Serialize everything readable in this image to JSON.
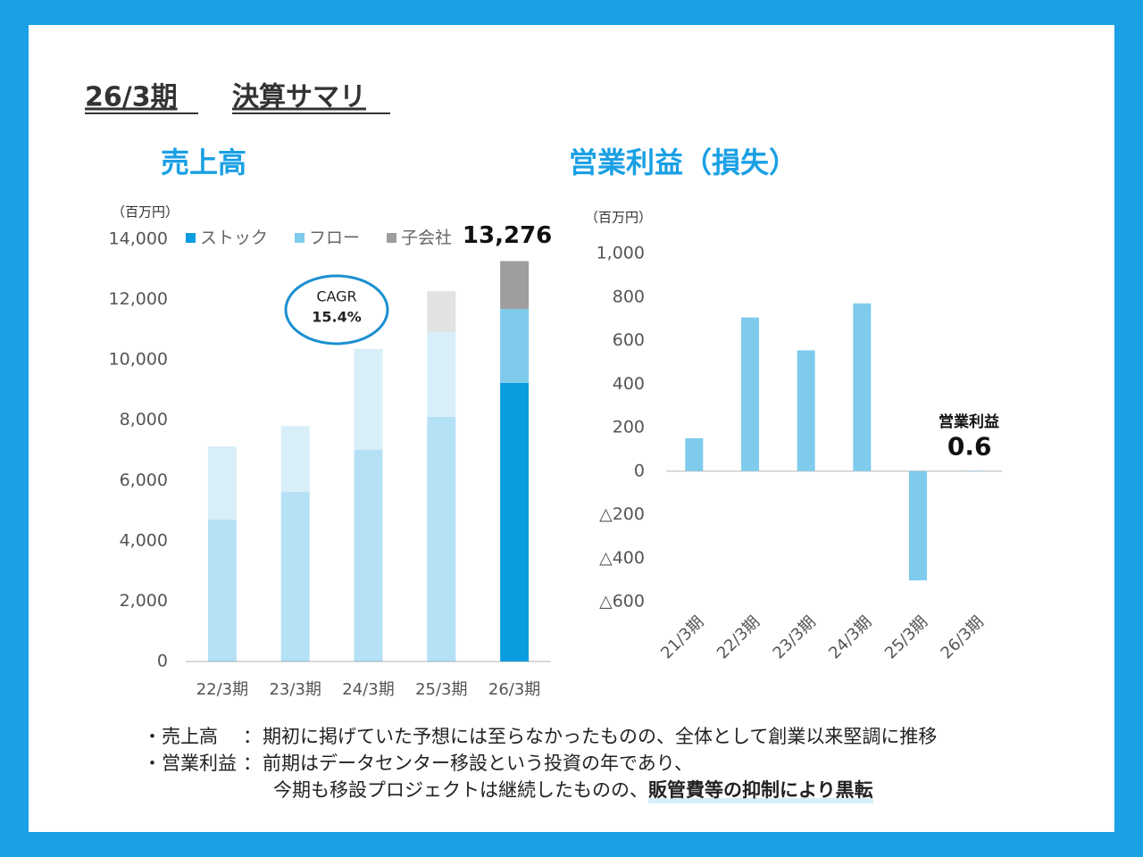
{
  "slide": {
    "title_period": "26/3期",
    "title_text": "決算サマリ"
  },
  "chart_data": [
    {
      "type": "bar",
      "stacked": true,
      "title": "売上高",
      "y_unit": "（百万円）",
      "categories": [
        "22/3期",
        "23/3期",
        "24/3期",
        "25/3期",
        "26/3期"
      ],
      "series": [
        {
          "name": "ストック",
          "color": "#0a9de0",
          "values": [
            4700,
            5620,
            7020,
            8110,
            9240
          ]
        },
        {
          "name": "フロー",
          "color": "#7ecbec",
          "values": [
            2430,
            2190,
            3340,
            2810,
            2450
          ]
        },
        {
          "name": "子会社",
          "color": "#9e9e9e",
          "values": [
            0,
            0,
            0,
            1360,
            1586
          ]
        }
      ],
      "total_label": "13,276",
      "annotations": [
        "CAGR",
        "15.4%"
      ],
      "ylim": [
        0,
        14000
      ],
      "yticks": [
        0,
        {
          "value": 2000,
          "label": "2,000"
        },
        {
          "value": 4000,
          "label": "4,000"
        },
        {
          "value": 6000,
          "label": "6,000"
        },
        {
          "value": 8000,
          "label": "8,000"
        },
        {
          "value": 10000,
          "label": "10,000"
        },
        {
          "value": 12000,
          "label": "12,000"
        },
        {
          "value": 14000,
          "label": "14,000"
        }
      ],
      "grid": false,
      "legend": "top"
    },
    {
      "type": "bar",
      "title": "営業利益（損失）",
      "y_unit": "（百万円）",
      "categories": [
        "21/3期",
        "22/3期",
        "23/3期",
        "24/3期",
        "25/3期",
        "26/3期"
      ],
      "values": [
        151,
        706,
        555,
        771,
        -502,
        0.6
      ],
      "value_labels": [
        null,
        null,
        null,
        null,
        null,
        "0.6"
      ],
      "color": "#7ecbec",
      "annotations": [
        "営業利益"
      ],
      "ylim": [
        -600,
        1000
      ],
      "yticks": [
        {
          "value": -600,
          "label": "△600"
        },
        {
          "value": -400,
          "label": "△400"
        },
        {
          "value": -200,
          "label": "△200"
        },
        0,
        200,
        400,
        600,
        800,
        {
          "value": 1000,
          "label": "1,000"
        }
      ],
      "grid": false
    }
  ],
  "notes": [
    {
      "label": "・売上高",
      "sep": "：",
      "text": "期初に掲げていた予想には至らなかったものの、全体として創業以来堅調に推移"
    },
    {
      "label": "・営業利益",
      "sep": "：",
      "text": "前期はデータセンター移設という投資の年であり、"
    },
    {
      "text": "今期も移設プロジェクトは継続したものの、",
      "emphasis": "販管費等の抑制により黒転"
    }
  ]
}
